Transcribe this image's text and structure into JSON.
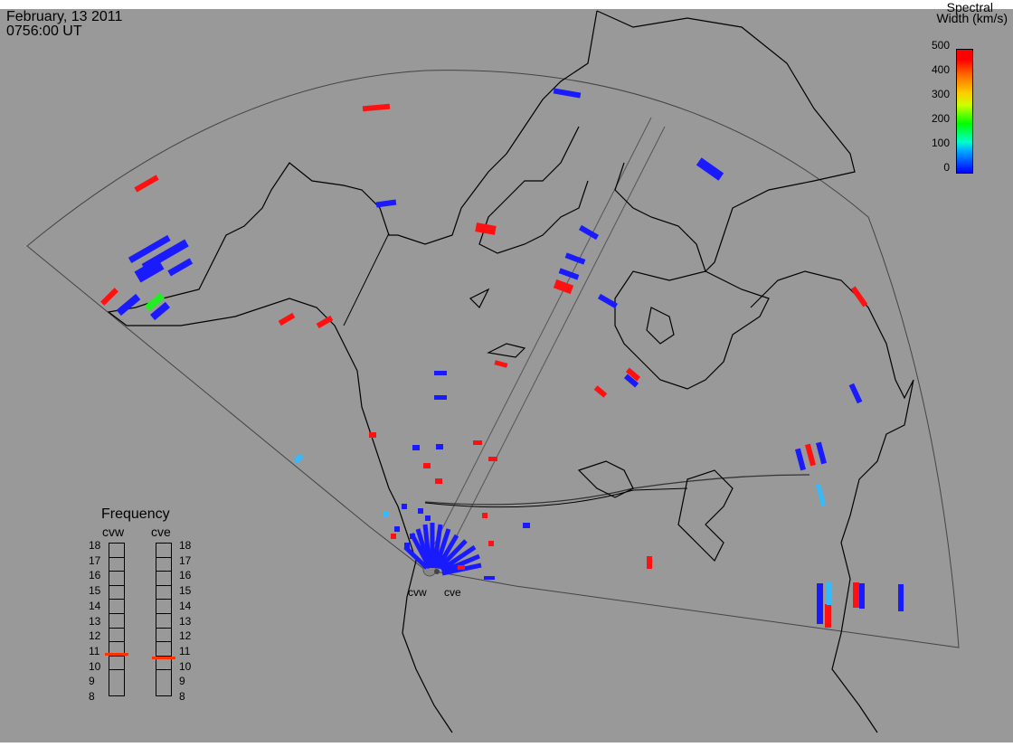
{
  "header": {
    "date": "February, 13 2011",
    "time": "0756:00 UT"
  },
  "colorbar": {
    "title_line1": "Spectral",
    "title_line2": "Width (km/s)",
    "ticks": [
      "500",
      "400",
      "300",
      "200",
      "100",
      "0"
    ],
    "colors": [
      "#0000ff",
      "#00aaff",
      "#00ff00",
      "#ffcc00",
      "#ff6600",
      "#ff0000"
    ]
  },
  "frequency": {
    "title": "Frequency",
    "left_label": "cvw",
    "right_label": "cve",
    "ticks": [
      "18",
      "17",
      "16",
      "15",
      "14",
      "13",
      "12",
      "11",
      "10",
      "9",
      "8"
    ],
    "cvw_value_mhz": 10.8,
    "cve_value_mhz": 10.6,
    "marker_color": "#ff3300"
  },
  "radars": {
    "west": "cvw",
    "east": "cve"
  },
  "map": {
    "background": "#999999",
    "coastline_color": "#000000",
    "fov_color": "#444444",
    "scatter_colors": {
      "low": "#1a1aff",
      "mid": "#33bbff",
      "green": "#22ee22",
      "high": "#ff1111"
    }
  }
}
